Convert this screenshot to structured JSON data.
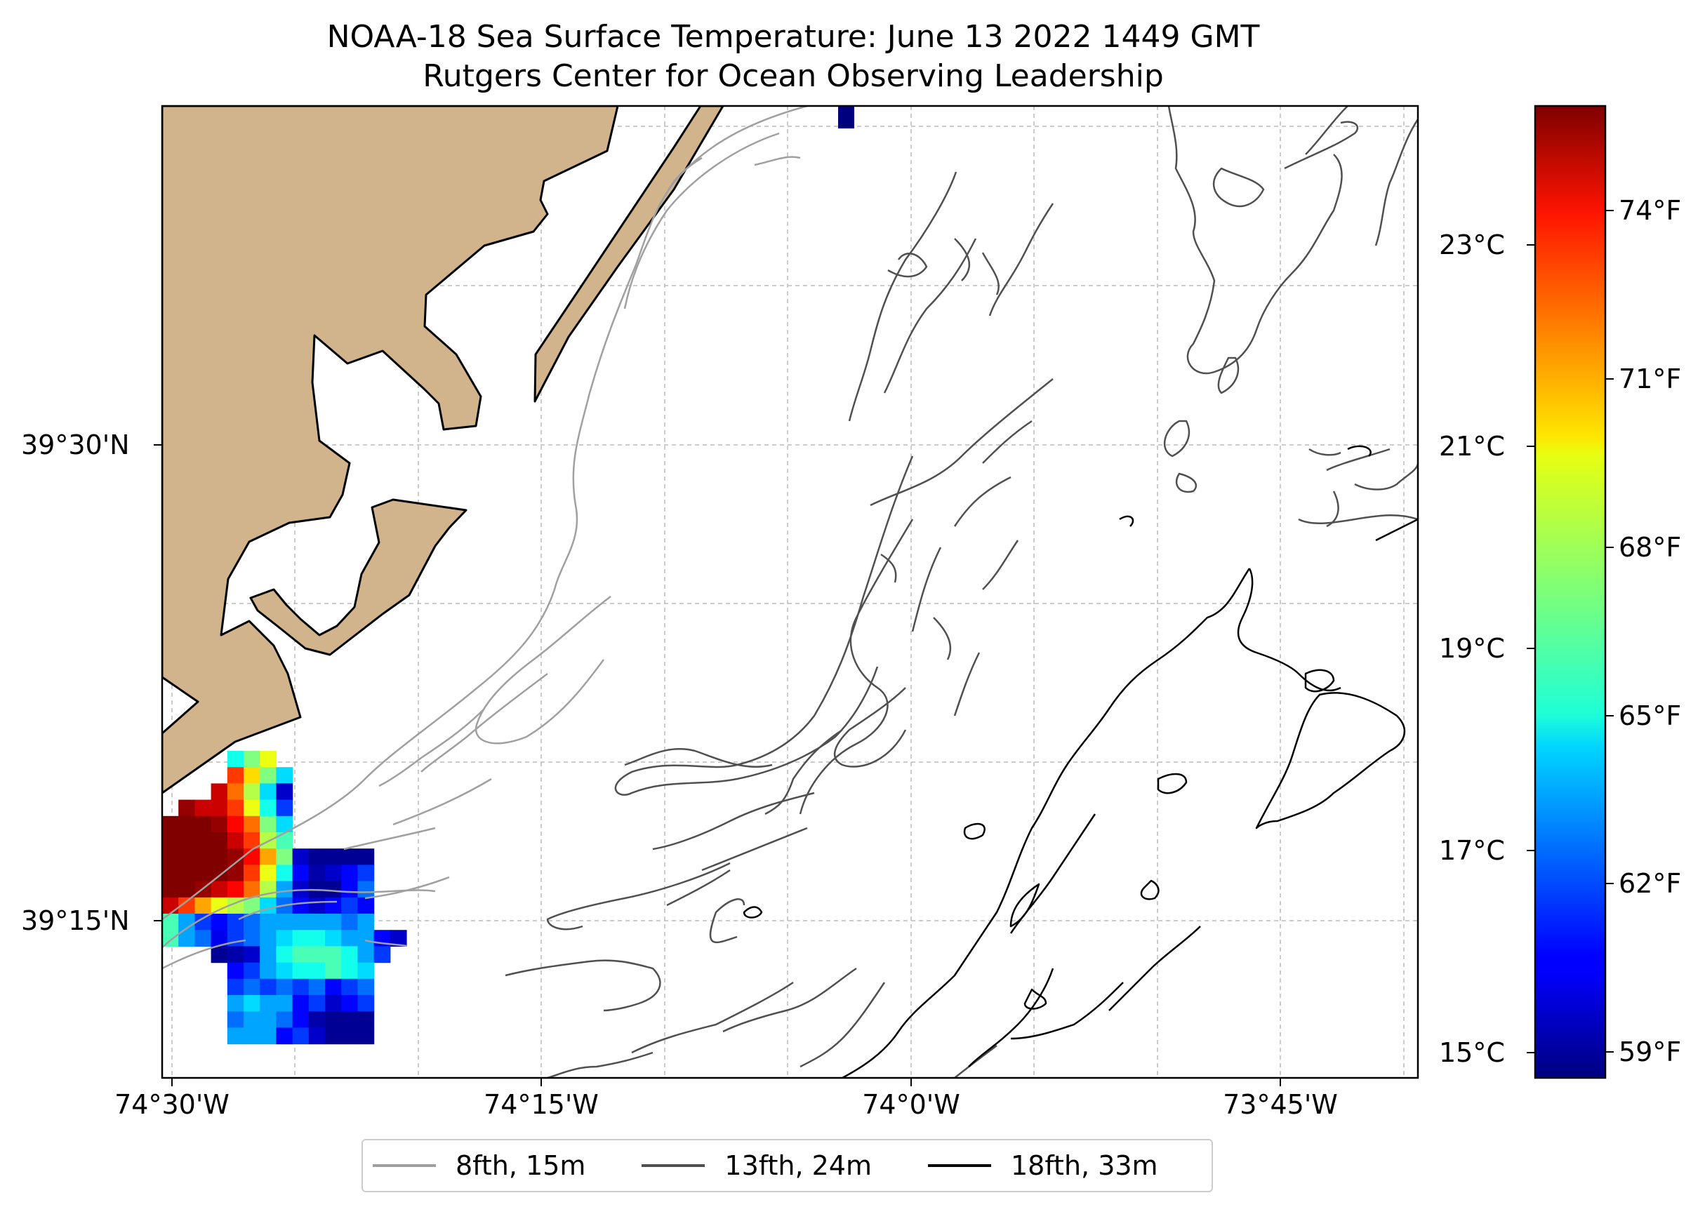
{
  "title": {
    "line1": "NOAA-18 Sea Surface Temperature: June 13 2022 1449 GMT",
    "line2": "Rutgers Center for Ocean Observing Leadership"
  },
  "axes": {
    "lat_labels": [
      "39°30'N",
      "39°15'N"
    ],
    "lon_labels": [
      "74°30'W",
      "74°15'W",
      "74°0'W",
      "73°45'W"
    ]
  },
  "colorbar": {
    "celsius_labels": [
      "23°C",
      "21°C",
      "19°C",
      "17°C",
      "15°C"
    ],
    "fahrenheit_labels": [
      "74°F",
      "71°F",
      "68°F",
      "65°F",
      "62°F",
      "59°F"
    ]
  },
  "legend": {
    "items": [
      {
        "label": "8fth, 15m",
        "color": "#a0a0a0"
      },
      {
        "label": "13fth, 24m",
        "color": "#505050"
      },
      {
        "label": "18fth, 33m",
        "color": "#000000"
      }
    ]
  },
  "colors": {
    "land": "#d2b48c",
    "gridline": "#bbbbbb",
    "colormap": "jet"
  },
  "chart_data": {
    "type": "heatmap",
    "variable": "sea surface temperature",
    "units": "°C",
    "value_range": [
      14.8,
      24.2
    ],
    "legend": "bottom-center",
    "grid": true,
    "rows": [
      [
        null,
        null,
        null,
        null,
        18.5,
        19.5,
        20.5,
        null,
        null,
        null,
        null,
        null,
        null,
        null,
        null
      ],
      [
        null,
        null,
        null,
        null,
        22.5,
        21.0,
        19.5,
        18.0,
        null,
        null,
        null,
        null,
        null,
        null,
        null
      ],
      [
        null,
        null,
        null,
        23.5,
        22.0,
        20.0,
        18.0,
        15.5,
        null,
        null,
        null,
        null,
        null,
        null,
        null
      ],
      [
        null,
        24.0,
        23.5,
        23.5,
        22.5,
        20.5,
        18.5,
        16.5,
        null,
        null,
        null,
        null,
        null,
        null,
        null
      ],
      [
        24.2,
        24.2,
        24.2,
        24.0,
        23.0,
        22.0,
        19.5,
        18.0,
        null,
        null,
        null,
        null,
        null,
        null,
        null
      ],
      [
        24.2,
        24.2,
        24.2,
        24.2,
        23.5,
        22.5,
        20.0,
        19.0,
        null,
        null,
        null,
        null,
        null,
        null,
        null
      ],
      [
        24.2,
        24.2,
        24.2,
        24.2,
        24.0,
        23.0,
        21.5,
        19.5,
        15.5,
        15.0,
        15.0,
        15.0,
        15.0,
        null,
        null
      ],
      [
        24.2,
        24.2,
        24.2,
        24.2,
        24.0,
        22.5,
        20.5,
        18.5,
        16.0,
        15.2,
        15.5,
        16.0,
        16.5,
        null,
        null
      ],
      [
        24.2,
        24.2,
        24.0,
        23.5,
        23.0,
        22.0,
        20.0,
        17.5,
        15.5,
        15.0,
        15.0,
        16.0,
        17.0,
        null,
        null
      ],
      [
        23.5,
        22.5,
        21.5,
        20.5,
        20.0,
        19.5,
        18.0,
        17.0,
        16.0,
        15.5,
        16.0,
        16.5,
        16.0,
        null,
        null
      ],
      [
        19.0,
        17.5,
        16.5,
        16.0,
        16.5,
        17.0,
        17.5,
        17.5,
        17.5,
        17.5,
        17.5,
        17.0,
        17.5,
        null,
        null
      ],
      [
        19.0,
        17.5,
        17.0,
        15.8,
        16.5,
        17.0,
        17.5,
        18.0,
        18.5,
        18.5,
        18.0,
        17.5,
        17.5,
        16.0,
        15.5
      ],
      [
        null,
        null,
        null,
        15.0,
        15.2,
        15.5,
        17.5,
        18.5,
        19.0,
        19.0,
        19.0,
        18.5,
        17.5,
        16.5,
        null
      ],
      [
        null,
        null,
        null,
        null,
        16.0,
        16.5,
        17.5,
        18.0,
        18.5,
        18.5,
        19.0,
        18.5,
        18.0,
        null,
        null
      ],
      [
        null,
        null,
        null,
        null,
        16.5,
        17.0,
        16.5,
        17.0,
        16.5,
        17.0,
        16.0,
        16.5,
        17.0,
        null,
        null
      ],
      [
        null,
        null,
        null,
        null,
        17.5,
        18.0,
        17.5,
        17.5,
        16.0,
        16.5,
        15.5,
        16.0,
        16.5,
        null,
        null
      ],
      [
        null,
        null,
        null,
        null,
        17.0,
        17.5,
        17.5,
        17.0,
        16.0,
        15.2,
        15.0,
        15.0,
        15.0,
        null,
        null
      ],
      [
        null,
        null,
        null,
        null,
        17.5,
        17.5,
        17.5,
        16.0,
        16.5,
        15.5,
        15.0,
        15.0,
        15.0,
        null,
        null
      ]
    ],
    "isolated_pixels": [
      {
        "value": 15.0
      }
    ]
  }
}
